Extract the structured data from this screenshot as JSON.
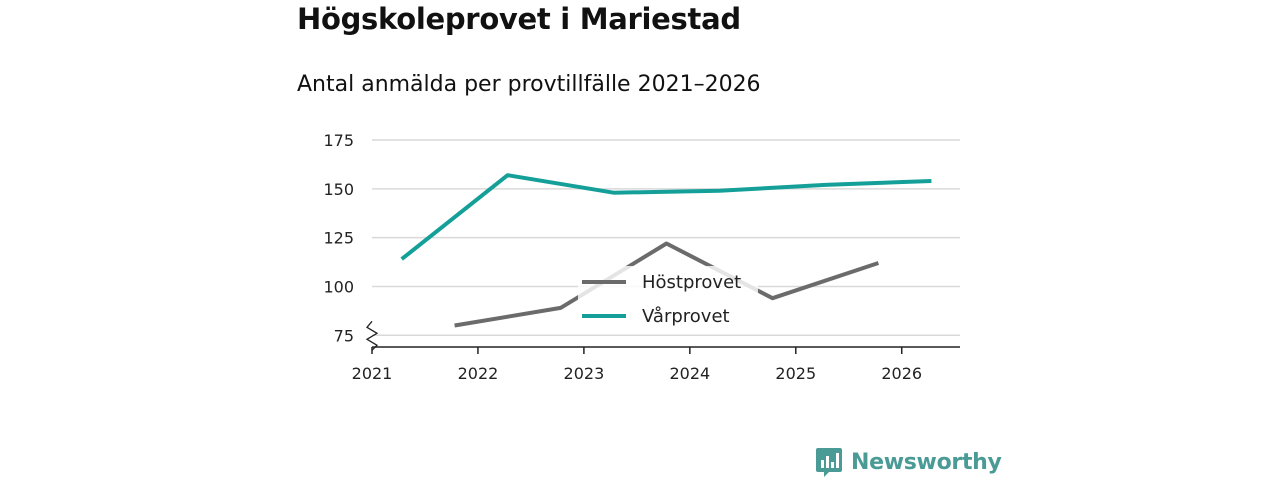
{
  "header": {
    "title": "Högskoleprovet i Mariestad",
    "subtitle": "Antal anmälda per provtillfälle 2021–2026"
  },
  "logo": {
    "text": "Newsworthy",
    "icon": "newsworthy-logo-icon"
  },
  "colors": {
    "hostprovet": "#6b6b6b",
    "varprovet": "#14a099",
    "grid": "#d9d9d9",
    "axis": "#222222"
  },
  "chart_data": {
    "type": "line",
    "title": "Antal anmälda per provtillfälle 2021–2026",
    "xlabel": "",
    "ylabel": "",
    "x_ticks": [
      "2021",
      "2022",
      "2023",
      "2024",
      "2025",
      "2026"
    ],
    "y_ticks": [
      "75",
      "100",
      "125",
      "150",
      "175"
    ],
    "xlim": [
      2021,
      2026.55
    ],
    "ylim": [
      69,
      175
    ],
    "axis_break": true,
    "legend_position": "center",
    "series": [
      {
        "name": "Höstprovet",
        "color": "#6b6b6b",
        "x": [
          2021.78,
          2022.78,
          2023.78,
          2024.78,
          2025.78
        ],
        "values": [
          80,
          89,
          122,
          94,
          112
        ]
      },
      {
        "name": "Vårprovet",
        "color": "#14a099",
        "x": [
          2021.28,
          2022.28,
          2023.28,
          2024.28,
          2025.28,
          2026.28
        ],
        "values": [
          114,
          157,
          148,
          149,
          152,
          154
        ]
      }
    ]
  }
}
